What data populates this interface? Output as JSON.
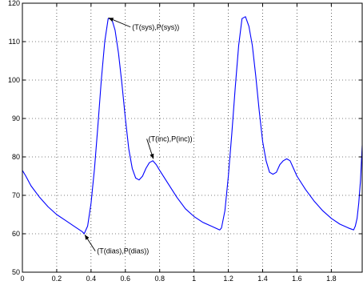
{
  "chart_data": {
    "type": "line",
    "title": "",
    "xlabel": "",
    "ylabel": "",
    "xlim": [
      0,
      1.98
    ],
    "ylim": [
      50,
      120
    ],
    "grid": true,
    "x_ticks": [
      0,
      0.2,
      0.4,
      0.6,
      0.8,
      1,
      1.2,
      1.4,
      1.6,
      1.8
    ],
    "x_tick_labels": [
      "0",
      "0.2",
      "0.4",
      "0.6",
      "0.8",
      "1",
      "1.2",
      "1.4",
      "1.6",
      "1.8"
    ],
    "y_ticks": [
      50,
      60,
      70,
      80,
      90,
      100,
      110,
      120
    ],
    "y_tick_labels": [
      "50",
      "60",
      "70",
      "80",
      "90",
      "100",
      "110",
      "120"
    ],
    "series": [
      {
        "color": "#0000ff",
        "x": [
          0,
          0.02,
          0.05,
          0.1,
          0.15,
          0.2,
          0.25,
          0.3,
          0.35,
          0.36,
          0.38,
          0.4,
          0.42,
          0.44,
          0.46,
          0.48,
          0.5,
          0.52,
          0.54,
          0.56,
          0.58,
          0.6,
          0.62,
          0.64,
          0.66,
          0.68,
          0.7,
          0.72,
          0.74,
          0.76,
          0.78,
          0.8,
          0.85,
          0.9,
          0.95,
          1.0,
          1.05,
          1.1,
          1.15,
          1.16,
          1.18,
          1.2,
          1.22,
          1.24,
          1.26,
          1.28,
          1.3,
          1.32,
          1.34,
          1.36,
          1.38,
          1.4,
          1.42,
          1.44,
          1.46,
          1.48,
          1.5,
          1.52,
          1.54,
          1.56,
          1.58,
          1.6,
          1.65,
          1.7,
          1.75,
          1.8,
          1.85,
          1.9,
          1.93,
          1.94,
          1.95,
          1.96,
          1.97,
          1.98
        ],
        "y": [
          76.5,
          75,
          72.5,
          69.5,
          67,
          65,
          63.5,
          62,
          60.5,
          60,
          62,
          68,
          77,
          88,
          100,
          110,
          116,
          116,
          113,
          107,
          99,
          90,
          82,
          77,
          74.5,
          74,
          75,
          77,
          78.5,
          79,
          78,
          76.5,
          73,
          69.5,
          66.5,
          64.5,
          63,
          62,
          61,
          61.5,
          66,
          75,
          86,
          98,
          109,
          116,
          116.5,
          114,
          109,
          101,
          92,
          84,
          79,
          76,
          75.5,
          76,
          78,
          79,
          79.5,
          79,
          77,
          75,
          71.5,
          68.5,
          66,
          64,
          62.5,
          61.5,
          61,
          62,
          64,
          68,
          74,
          83
        ]
      }
    ],
    "annotations": [
      {
        "text": "(T(sys),P(sys))",
        "x": 0.495,
        "y": 116.3,
        "text_x": 0.63,
        "text_y": 113.8
      },
      {
        "text": "(T(inc),P(inc))",
        "x": 0.765,
        "y": 79.2,
        "text_x": 0.725,
        "text_y": 84.7
      },
      {
        "text": "(T(dias),P(dias))",
        "x": 0.36,
        "y": 60,
        "text_x": 0.425,
        "text_y": 55.5
      }
    ]
  }
}
